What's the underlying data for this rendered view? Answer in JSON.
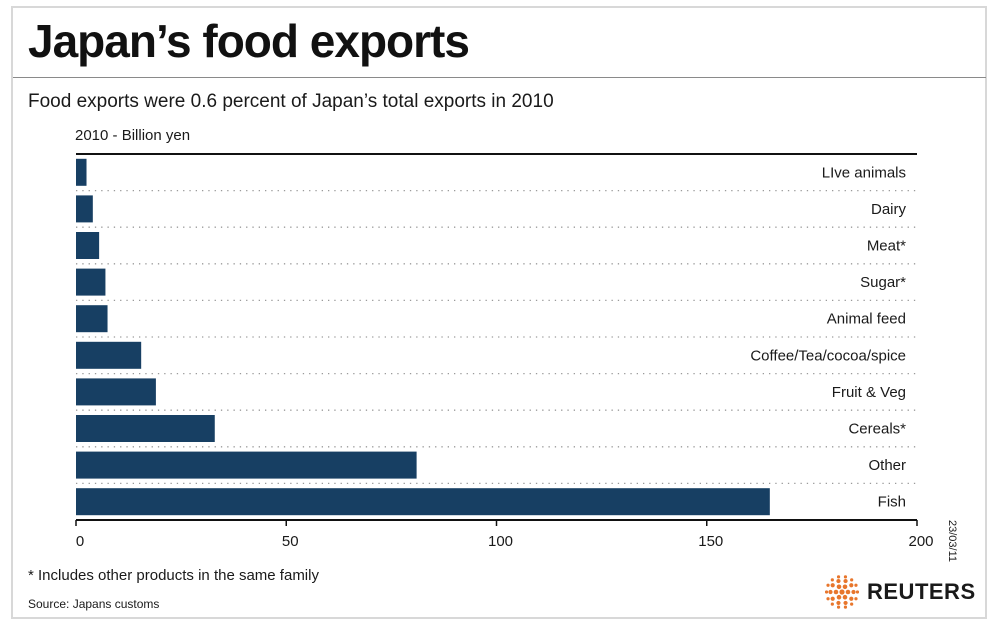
{
  "header": {
    "title": "Japan’s food exports",
    "subtitle": "Food exports were 0.6 percent of Japan’s total exports in 2010"
  },
  "footer": {
    "footnote": "* Includes other products in the same family",
    "source": "Source: Japans customs",
    "datestamp": "23/03/11",
    "logo_text": "REUTERS"
  },
  "colors": {
    "bar": "#173f63",
    "logo_accent": "#e8762c"
  },
  "chart_data": {
    "type": "bar",
    "orientation": "horizontal",
    "unit_label": "2010 - Billion yen",
    "categories": [
      "LIve animals",
      "Dairy",
      "Meat*",
      "Sugar*",
      "Animal feed",
      "Coffee/Tea/cocoa/spice",
      "Fruit & Veg",
      "Cereals*",
      "Other",
      "Fish"
    ],
    "values": [
      2.5,
      4,
      5.5,
      7,
      7.5,
      15.5,
      19,
      33,
      81,
      165
    ],
    "xlim": [
      0,
      200
    ],
    "xticks": [
      0,
      50,
      100,
      150,
      200
    ],
    "grid": "dotted separators between rows",
    "category_label_position": "right"
  }
}
